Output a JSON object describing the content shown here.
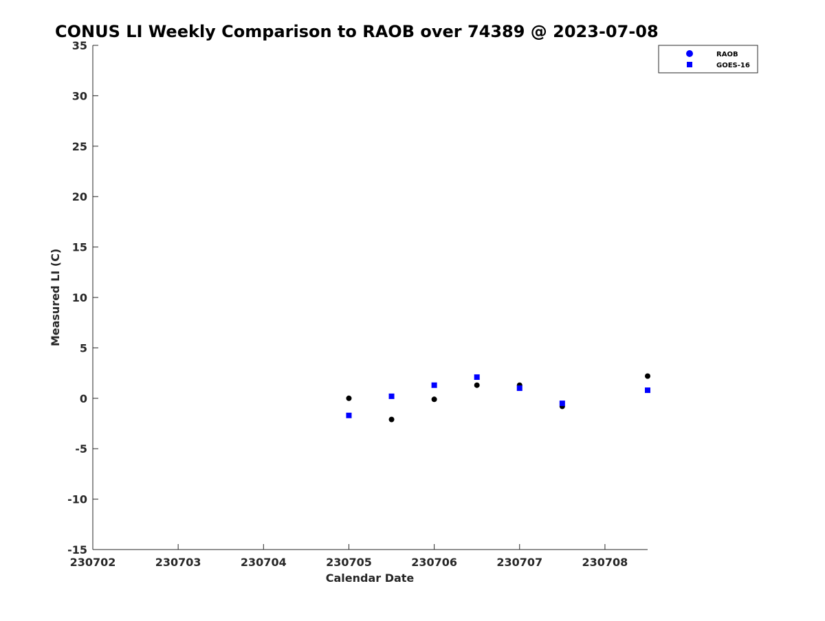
{
  "chart_data": {
    "type": "scatter",
    "title": "CONUS LI Weekly Comparison to RAOB over 74389 @ 2023-07-08",
    "xlabel": "Calendar Date",
    "ylabel": "Measured LI (C)",
    "xlim": [
      230702,
      230708.5
    ],
    "ylim": [
      -15,
      35
    ],
    "x_ticks": [
      230702,
      230703,
      230704,
      230705,
      230706,
      230707,
      230708
    ],
    "x_tick_labels": [
      "230702",
      "230703",
      "230704",
      "230705",
      "230706",
      "230707",
      "230708"
    ],
    "y_ticks": [
      -15,
      -10,
      -5,
      0,
      5,
      10,
      15,
      20,
      25,
      30,
      35
    ],
    "y_tick_labels": [
      "-15",
      "-10",
      "-5",
      "0",
      "5",
      "10",
      "15",
      "20",
      "25",
      "30",
      "35"
    ],
    "grid": false,
    "legend_position": "top-right",
    "series": [
      {
        "name": "RAOB",
        "marker": "circle",
        "color": "#000000",
        "legend_color": "#0000ff",
        "points": [
          {
            "x": 230705.0,
            "y": 0.0
          },
          {
            "x": 230705.5,
            "y": -2.1
          },
          {
            "x": 230706.0,
            "y": -0.1
          },
          {
            "x": 230706.5,
            "y": 1.3
          },
          {
            "x": 230707.0,
            "y": 1.3
          },
          {
            "x": 230707.5,
            "y": -0.8
          },
          {
            "x": 230708.5,
            "y": 2.2
          }
        ]
      },
      {
        "name": "GOES-16",
        "marker": "square",
        "color": "#0000ff",
        "legend_color": "#0000ff",
        "points": [
          {
            "x": 230705.0,
            "y": -1.7
          },
          {
            "x": 230705.5,
            "y": 0.2
          },
          {
            "x": 230706.0,
            "y": 1.3
          },
          {
            "x": 230706.5,
            "y": 2.1
          },
          {
            "x": 230707.0,
            "y": 1.0
          },
          {
            "x": 230707.5,
            "y": -0.5
          },
          {
            "x": 230708.5,
            "y": 0.8
          }
        ]
      }
    ]
  }
}
